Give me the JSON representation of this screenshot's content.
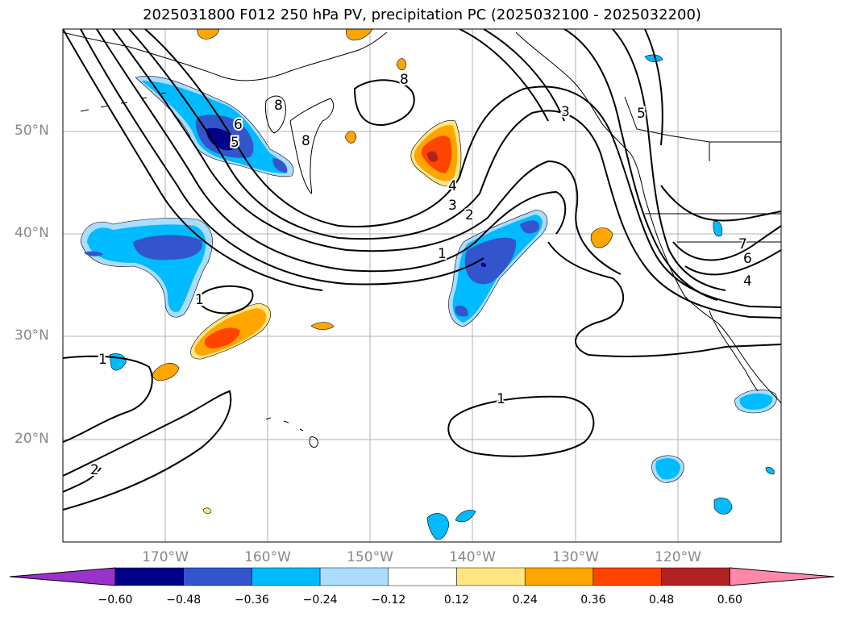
{
  "title": "2025031800 F012 250 hPa PV, precipitation PC (2025032100 - 2025032200)",
  "lat_labels": [
    "50°N",
    "40°N",
    "30°N",
    "20°N"
  ],
  "lon_labels": [
    "170°W",
    "160°W",
    "150°W",
    "140°W",
    "130°W",
    "120°W"
  ],
  "colorbar": {
    "colors": [
      "#9933cc",
      "#000088",
      "#3355cc",
      "#00bbff",
      "#aaddff",
      "#ffffff",
      "#ffe680",
      "#ffa500",
      "#ff4400",
      "#b22222",
      "#ff88aa"
    ],
    "ticks": [
      "−0.60",
      "−0.48",
      "−0.36",
      "−0.24",
      "−0.12",
      "0.12",
      "0.24",
      "0.36",
      "0.48",
      "0.60"
    ]
  },
  "contour_labels": [
    "1",
    "1",
    "1",
    "1",
    "2",
    "3",
    "4",
    "5",
    "6",
    "8",
    "8",
    "8",
    "3",
    "5",
    "4",
    "6",
    "7",
    "2"
  ]
}
